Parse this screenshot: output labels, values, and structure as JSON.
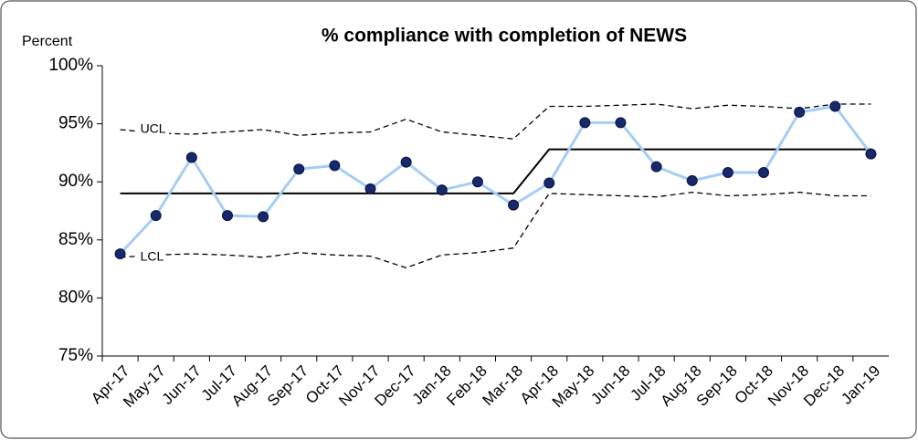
{
  "chart_data": {
    "type": "line",
    "title": "% compliance with completion of NEWS",
    "y_label": "Percent",
    "categories": [
      "Apr-17",
      "May-17",
      "Jun-17",
      "Jul-17",
      "Aug-17",
      "Sep-17",
      "Oct-17",
      "Nov-17",
      "Dec-17",
      "Jan-18",
      "Feb-18",
      "Mar-18",
      "Apr-18",
      "May-18",
      "Jun-18",
      "Jul-18",
      "Aug-18",
      "Sep-18",
      "Oct-18",
      "Nov-18",
      "Dec-18",
      "Jan-19"
    ],
    "series": [
      {
        "color": "#000000",
        "width": 2,
        "dash": false,
        "markers": false,
        "values": [
          89.0,
          89.0,
          89.0,
          89.0,
          89.0,
          89.0,
          89.0,
          89.0,
          89.0,
          89.0,
          89.0,
          89.0,
          92.8,
          92.8,
          92.8,
          92.8,
          92.8,
          92.8,
          92.8,
          92.8,
          92.8,
          92.8
        ]
      },
      {
        "name": "UCL",
        "color": "#000000",
        "width": 1.3,
        "dash": true,
        "markers": false,
        "values": [
          94.5,
          94.2,
          94.1,
          94.3,
          94.5,
          94.0,
          94.2,
          94.3,
          95.4,
          94.3,
          94.0,
          93.7,
          96.5,
          96.5,
          96.6,
          96.7,
          96.3,
          96.6,
          96.5,
          96.3,
          96.7,
          96.7
        ]
      },
      {
        "name": "LCL",
        "color": "#000000",
        "width": 1.3,
        "dash": true,
        "markers": false,
        "values": [
          83.5,
          83.7,
          83.8,
          83.7,
          83.5,
          83.9,
          83.7,
          83.6,
          82.6,
          83.7,
          83.9,
          84.3,
          89.0,
          88.9,
          88.8,
          88.7,
          89.1,
          88.8,
          88.9,
          89.1,
          88.8,
          88.8
        ]
      },
      {
        "color": "#a6cdf5",
        "marker_color": "#17286b",
        "width": 3,
        "dash": false,
        "markers": true,
        "values": [
          83.8,
          87.1,
          92.1,
          87.1,
          87.0,
          91.1,
          91.4,
          89.4,
          91.7,
          89.3,
          90.0,
          88.0,
          89.9,
          95.1,
          95.1,
          91.3,
          90.1,
          90.8,
          90.8,
          96.0,
          96.5,
          92.4
        ]
      }
    ],
    "ylim": [
      75,
      100
    ],
    "yticks": [
      {
        "value": 75,
        "label": "75%"
      },
      {
        "value": 80,
        "label": "80%"
      },
      {
        "value": 85,
        "label": "85%"
      },
      {
        "value": 90,
        "label": "90%"
      },
      {
        "value": 95,
        "label": "95%"
      },
      {
        "value": 100,
        "label": "100%"
      }
    ],
    "grid": false
  }
}
